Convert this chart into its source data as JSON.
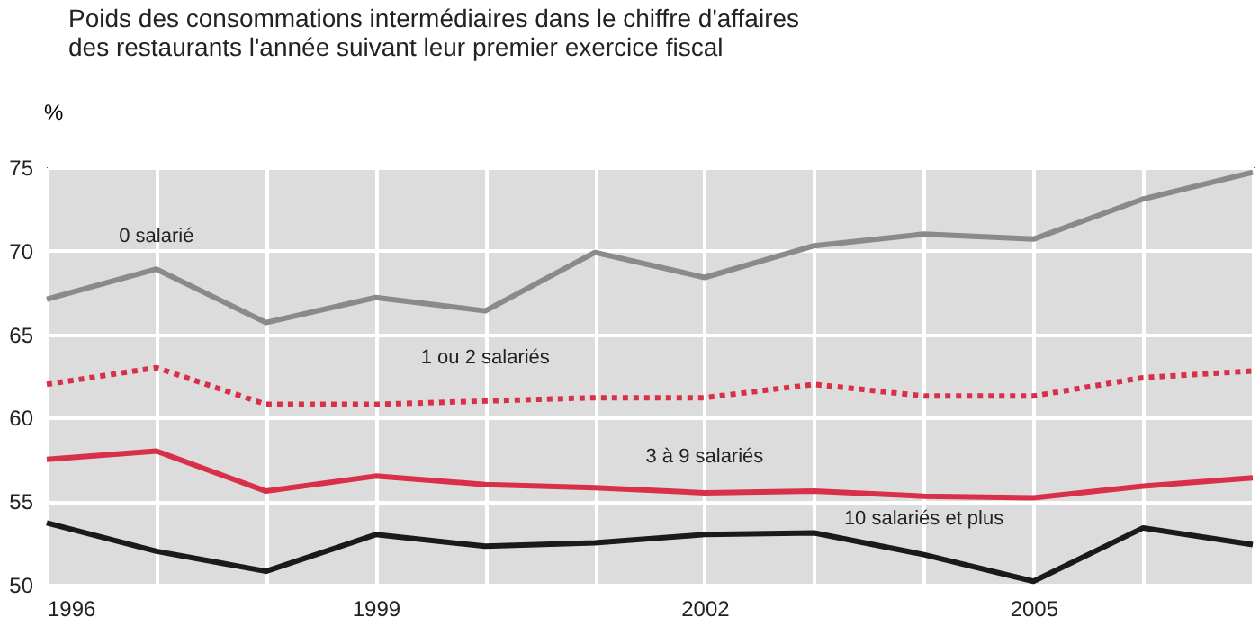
{
  "chart_data": {
    "type": "line",
    "title": "Poids des consommations intermédiaires dans le chiffre d'affaires\ndes restaurants l'année suivant leur premier exercice fiscal",
    "ylabel": "%",
    "x": [
      1996,
      1997,
      1998,
      1999,
      2000,
      2001,
      2002,
      2003,
      2004,
      2005,
      2006,
      2007
    ],
    "xlim": [
      1996,
      2007
    ],
    "xticks": [
      1996,
      {
        "value": 1997,
        "label": null
      },
      {
        "value": 1998,
        "label": null
      },
      1999,
      {
        "value": 2000,
        "label": null
      },
      {
        "value": 2001,
        "label": null
      },
      2002,
      {
        "value": 2003,
        "label": null
      },
      {
        "value": 2004,
        "label": null
      },
      2005,
      {
        "value": 2006,
        "label": null
      },
      {
        "value": 2007,
        "label": null
      }
    ],
    "ylim": [
      50,
      75
    ],
    "yticks": [
      50,
      55,
      60,
      65,
      70,
      75
    ],
    "grid": true,
    "series": [
      {
        "name": "0 salarié",
        "color": "#8a8a8a",
        "line_style": "solid",
        "values": [
          67.1,
          68.9,
          65.7,
          67.2,
          66.4,
          69.9,
          68.4,
          70.3,
          71.0,
          70.7,
          73.1,
          74.7
        ]
      },
      {
        "name": "1 ou 2 salariés",
        "color": "#d9304a",
        "line_style": "dotted",
        "values": [
          62.0,
          63.0,
          60.8,
          60.8,
          61.0,
          61.2,
          61.2,
          62.0,
          61.3,
          61.3,
          62.4,
          62.8
        ]
      },
      {
        "name": "3 à 9 salariés",
        "color": "#d9304a",
        "line_style": "solid",
        "values": [
          57.5,
          58.0,
          55.6,
          56.5,
          56.0,
          55.8,
          55.5,
          55.6,
          55.3,
          55.2,
          55.9,
          56.4
        ]
      },
      {
        "name": "10 salariés et plus",
        "color": "#1a1a1a",
        "line_style": "solid",
        "values": [
          53.7,
          52.0,
          50.8,
          53.0,
          52.3,
          52.5,
          53.0,
          53.1,
          51.8,
          50.2,
          53.4,
          52.4
        ]
      }
    ]
  }
}
